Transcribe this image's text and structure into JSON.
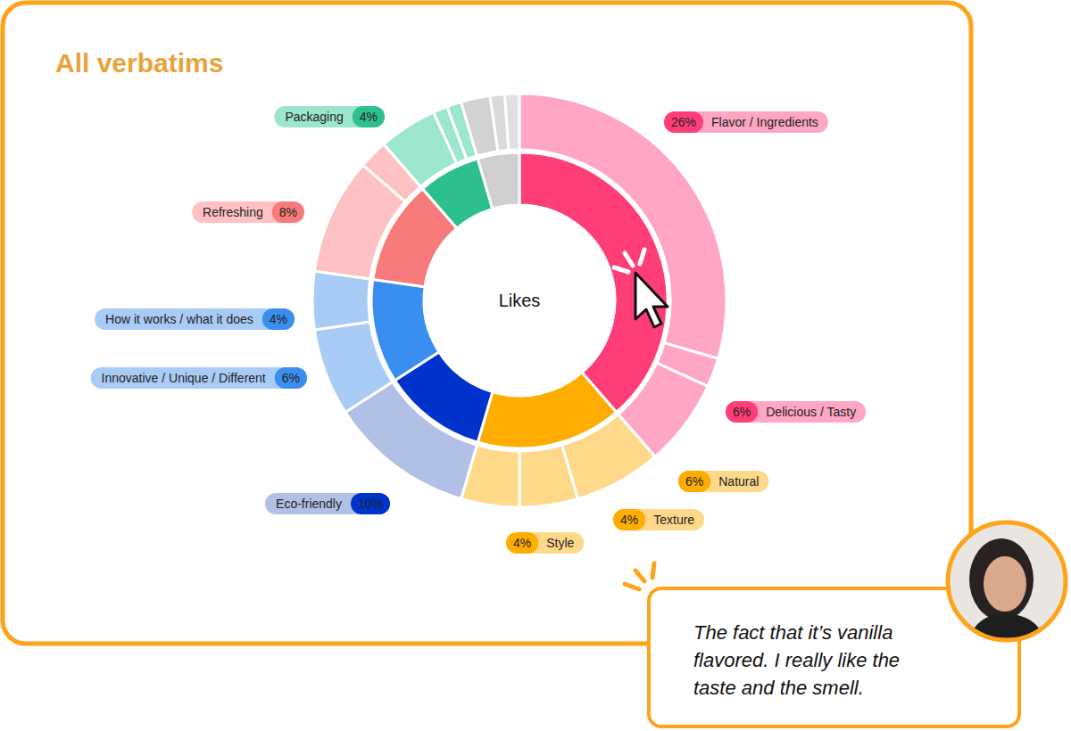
{
  "chart_data": {
    "type": "sunburst",
    "title": "All verbatims",
    "center_label": "Likes",
    "data_labels": true,
    "groups": [
      {
        "color": "#ff3d77",
        "colors": [
          "#ffa6c3",
          "#ffa6c3",
          "#ffa6c3"
        ],
        "categories": [
          "Flavor / Ingredients",
          null,
          "Delicious / Tasty"
        ],
        "values": [
          26,
          2,
          6
        ],
        "value_labels": [
          "26%",
          null,
          "6%"
        ]
      },
      {
        "color": "#ffad00",
        "colors": [
          "#ffd98a",
          "#ffd98a",
          "#ffd98a"
        ],
        "categories": [
          "Natural",
          "Texture",
          "Style"
        ],
        "values": [
          6,
          4,
          4
        ],
        "value_labels": [
          "6%",
          "4%",
          "4%"
        ]
      },
      {
        "color": "#0033cc",
        "colors": [
          "#b3c0e6"
        ],
        "categories": [
          "Eco-friendly"
        ],
        "values": [
          10
        ],
        "value_labels": [
          "10%"
        ]
      },
      {
        "color": "#3a8ef0",
        "colors": [
          "#a9ccf7",
          "#a9ccf7"
        ],
        "categories": [
          "Innovative / Unique / Different",
          "How it works / what it does"
        ],
        "values": [
          6,
          4
        ],
        "value_labels": [
          "6%",
          "4%"
        ]
      },
      {
        "color": "#f77b7b",
        "colors": [
          "#ffc2c4",
          "#ffc2c4"
        ],
        "categories": [
          "Refreshing",
          null
        ],
        "values": [
          8,
          2
        ],
        "value_labels": [
          "8%",
          null
        ]
      },
      {
        "color": "#2ebf8f",
        "colors": [
          "#9be6cc",
          "#9be6cc",
          "#9be6cc"
        ],
        "categories": [
          "Packaging",
          null,
          null
        ],
        "values": [
          4,
          1,
          1
        ],
        "value_labels": [
          "4%",
          null,
          null
        ]
      },
      {
        "color": "#cfcfcf",
        "colors": [
          "#d2d2d2",
          "#dadada",
          "#e0e0e0"
        ],
        "categories": [
          null,
          null,
          null
        ],
        "values": [
          2,
          1,
          1
        ],
        "value_labels": [
          null,
          null,
          null
        ]
      }
    ],
    "annotations": [
      "The fact that it’s vanilla",
      "flavored. I really like the",
      "taste and the smell."
    ]
  }
}
